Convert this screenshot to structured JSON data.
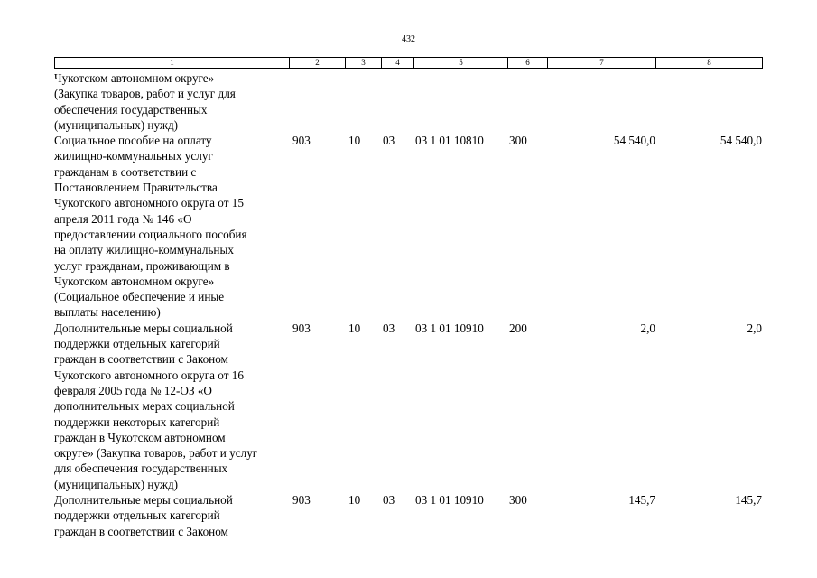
{
  "page_number": "432",
  "header_columns": [
    "1",
    "2",
    "3",
    "4",
    "5",
    "6",
    "7",
    "8"
  ],
  "rows": [
    {
      "name_lines": [
        "Чукотском автономном округе»",
        "(Закупка товаров, работ и услуг для",
        "обеспечения государственных",
        "(муниципальных) нужд)"
      ],
      "c2": "",
      "c3": "",
      "c4": "",
      "c5": "",
      "c6": "",
      "c7": "",
      "c8": ""
    },
    {
      "name_lines": [
        "Социальное пособие на оплату",
        "жилищно-коммунальных услуг",
        "гражданам в соответствии с",
        "Постановлением Правительства",
        "Чукотского автономного округа от 15",
        "апреля 2011 года № 146 «О",
        "предоставлении социального пособия",
        "на оплату жилищно-коммунальных",
        "услуг гражданам, проживающим в",
        "Чукотском автономном округе»",
        "(Социальное обеспечение и иные",
        "выплаты населению)"
      ],
      "c2": "903",
      "c3": "10",
      "c4": "03",
      "c5": "03 1 01 10810",
      "c6": "300",
      "c7": "54 540,0",
      "c8": "54 540,0"
    },
    {
      "name_lines": [
        "Дополнительные меры социальной",
        "поддержки отдельных категорий",
        "граждан в соответствии с Законом",
        "Чукотского автономного округа от 16",
        "февраля 2005 года № 12-ОЗ «О",
        "дополнительных мерах социальной",
        "поддержки некоторых категорий",
        "граждан в Чукотском автономном",
        "округе» (Закупка товаров, работ и услуг",
        "для обеспечения государственных",
        "(муниципальных) нужд)"
      ],
      "c2": "903",
      "c3": "10",
      "c4": "03",
      "c5": "03 1 01 10910",
      "c6": "200",
      "c7": "2,0",
      "c8": "2,0"
    },
    {
      "name_lines": [
        "Дополнительные меры социальной",
        "поддержки отдельных категорий",
        "граждан в соответствии с Законом"
      ],
      "c2": "903",
      "c3": "10",
      "c4": "03",
      "c5": "03 1 01 10910",
      "c6": "300",
      "c7": "145,7",
      "c8": "145,7"
    }
  ]
}
